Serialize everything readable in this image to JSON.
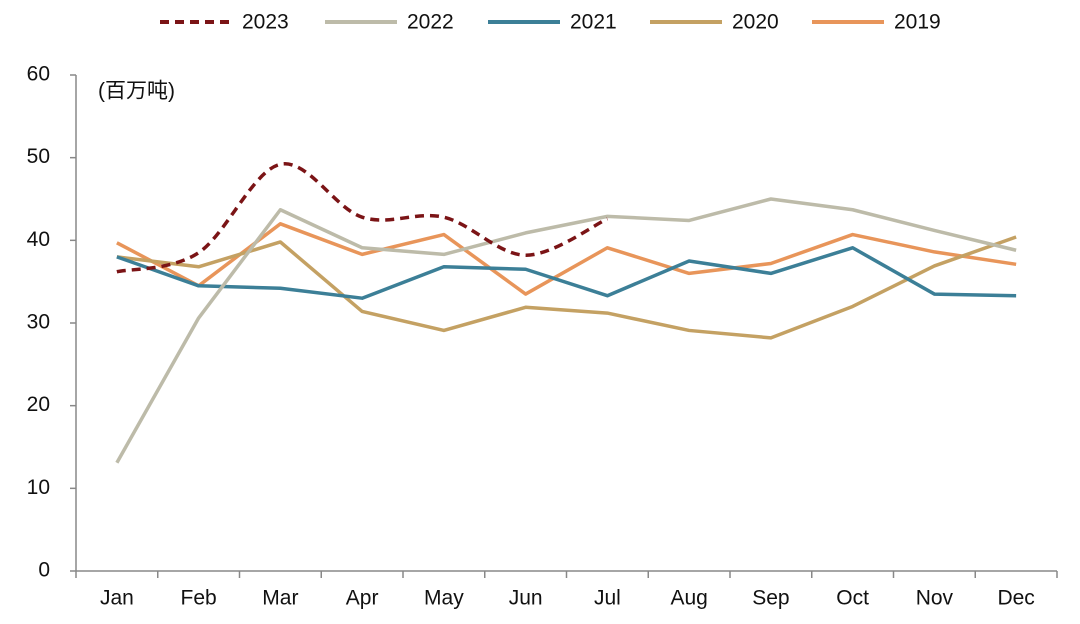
{
  "chart_data": {
    "type": "line",
    "y_label": "(百万吨)",
    "categories": [
      "Jan",
      "Feb",
      "Mar",
      "Apr",
      "May",
      "Jun",
      "Jul",
      "Aug",
      "Sep",
      "Oct",
      "Nov",
      "Dec"
    ],
    "ylim": [
      0,
      60
    ],
    "yticks": [
      0,
      10,
      20,
      30,
      40,
      50,
      60
    ],
    "series": [
      {
        "name": "2023",
        "color": "#7b1416",
        "dashed": true,
        "smooth": true,
        "values": [
          36.2,
          38.5,
          49.2,
          42.8,
          42.8,
          38.2,
          42.6,
          null,
          null,
          null,
          null,
          null
        ]
      },
      {
        "name": "2022",
        "color": "#bdbba9",
        "values": [
          13.1,
          30.6,
          43.7,
          39.1,
          38.3,
          40.9,
          42.9,
          42.4,
          45.0,
          43.7,
          41.2,
          38.8
        ]
      },
      {
        "name": "2021",
        "color": "#3c7f97",
        "values": [
          38.0,
          34.5,
          34.2,
          33.0,
          36.8,
          36.5,
          33.3,
          37.5,
          36.0,
          39.1,
          33.5,
          33.3
        ]
      },
      {
        "name": "2020",
        "color": "#c4a163",
        "values": [
          38.0,
          36.8,
          39.8,
          31.4,
          29.1,
          31.9,
          31.2,
          29.1,
          28.2,
          32.0,
          36.9,
          40.4
        ]
      },
      {
        "name": "2019",
        "color": "#e8955a",
        "values": [
          39.7,
          34.5,
          42.0,
          38.3,
          40.7,
          33.5,
          39.1,
          36.0,
          37.2,
          40.7,
          38.6,
          37.1
        ]
      }
    ]
  }
}
